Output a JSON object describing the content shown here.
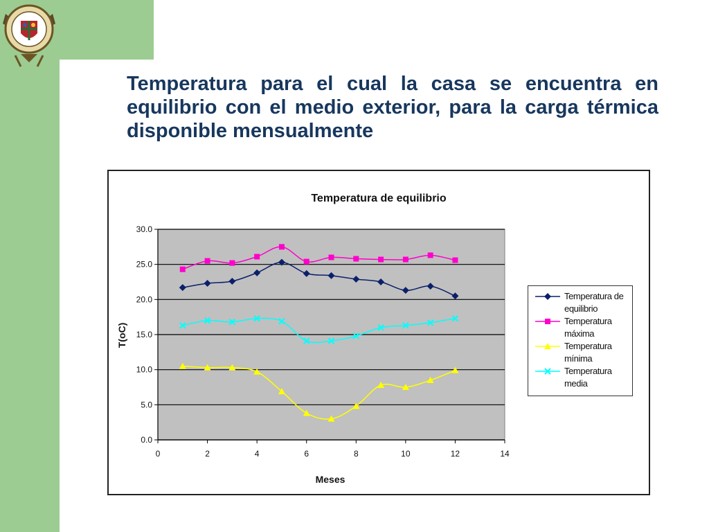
{
  "slide": {
    "title": "Temperatura para el cual la casa se encuentra en equilibrio con el medio exterior, para la carga térmica disponible mensualmente",
    "colors": {
      "band": "#9ccc92",
      "title": "#17375e"
    }
  },
  "chart_data": {
    "type": "line",
    "title": "Temperatura de equilibrio",
    "xlabel": "Meses",
    "ylabel": "T(oC)",
    "xlim": [
      0,
      14
    ],
    "ylim": [
      0,
      30
    ],
    "xticks": [
      "0",
      "2",
      "4",
      "6",
      "8",
      "10",
      "12",
      "14"
    ],
    "yticks": [
      "0.0",
      "5.0",
      "10.0",
      "15.0",
      "20.0",
      "25.0",
      "30.0"
    ],
    "grid": "horizontal",
    "plot_background": "#c0c0c0",
    "legend_position": "right",
    "x": [
      1,
      2,
      3,
      4,
      5,
      6,
      7,
      8,
      9,
      10,
      11,
      12
    ],
    "series": [
      {
        "name": "Temperatura de equilibrio",
        "color": "#0b1f6b",
        "marker": "diamond",
        "values": [
          21.7,
          22.3,
          22.6,
          23.8,
          25.3,
          23.7,
          23.4,
          22.9,
          22.5,
          21.3,
          21.9,
          20.5
        ]
      },
      {
        "name": "Temperatura máxima",
        "color": "#ff00cc",
        "marker": "square",
        "values": [
          24.3,
          25.5,
          25.2,
          26.1,
          27.5,
          25.4,
          26.0,
          25.8,
          25.7,
          25.7,
          26.3,
          25.6
        ]
      },
      {
        "name": "Temperatura mínima",
        "color": "#ffff00",
        "marker": "triangle",
        "values": [
          10.5,
          10.3,
          10.3,
          9.7,
          6.9,
          3.8,
          3.0,
          4.8,
          7.8,
          7.5,
          8.5,
          9.9
        ]
      },
      {
        "name": "Temperatura media",
        "color": "#00ffff",
        "marker": "x",
        "values": [
          16.3,
          17.0,
          16.8,
          17.3,
          16.9,
          14.1,
          14.1,
          14.8,
          16.0,
          16.3,
          16.7,
          17.3
        ]
      }
    ]
  }
}
